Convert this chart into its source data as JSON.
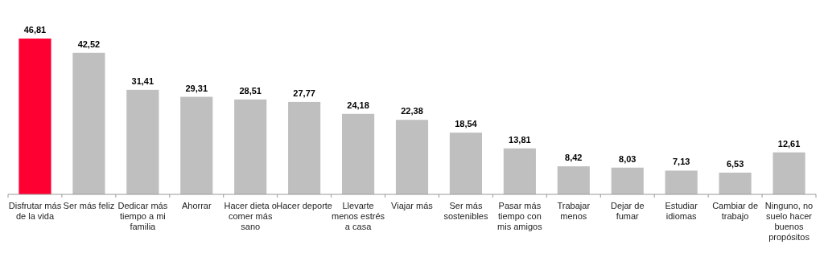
{
  "chart_data": {
    "type": "bar",
    "categories": [
      "Disfrutar más de la vida",
      "Ser más feliz",
      "Dedicar más tiempo a mi familia",
      "Ahorrar",
      "Hacer dieta o comer más sano",
      "Hacer deporte",
      "Llevarte menos estrés a casa",
      "Viajar más",
      "Ser más sostenibles",
      "Pasar más tiempo con mis amigos",
      "Trabajar menos",
      "Dejar de fumar",
      "Estudiar idiomas",
      "Cambiar de trabajo",
      "Ninguno, no suelo hacer buenos propósitos"
    ],
    "values": [
      46.81,
      42.52,
      31.41,
      29.31,
      28.51,
      27.77,
      24.18,
      22.38,
      18.54,
      13.81,
      8.42,
      8.03,
      7.13,
      6.53,
      12.61
    ],
    "colors": [
      "#ff0033",
      "#bfbfbf",
      "#bfbfbf",
      "#bfbfbf",
      "#bfbfbf",
      "#bfbfbf",
      "#bfbfbf",
      "#bfbfbf",
      "#bfbfbf",
      "#bfbfbf",
      "#bfbfbf",
      "#bfbfbf",
      "#bfbfbf",
      "#bfbfbf",
      "#bfbfbf"
    ],
    "value_labels": [
      "46,81",
      "42,52",
      "31,41",
      "29,31",
      "28,51",
      "27,77",
      "24,18",
      "22,38",
      "18,54",
      "13,81",
      "8,42",
      "8,03",
      "7,13",
      "6,53",
      "12,61"
    ]
  }
}
